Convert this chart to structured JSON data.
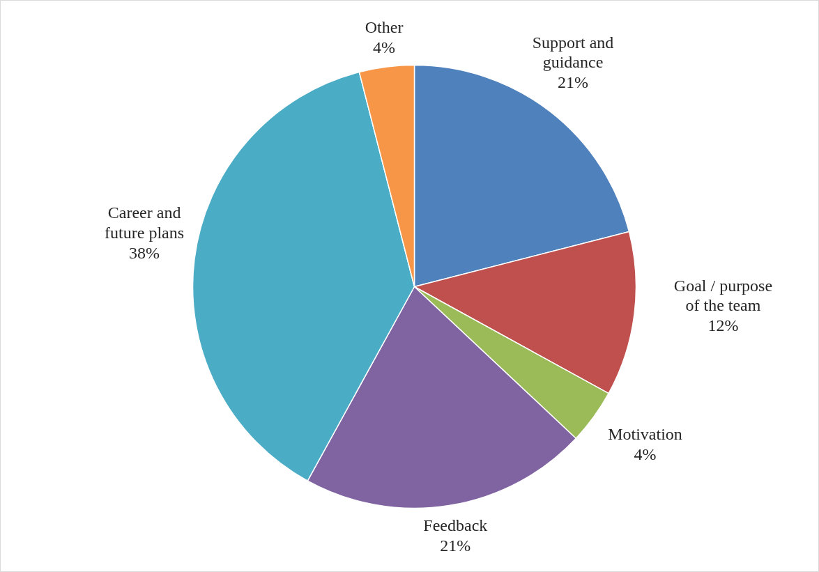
{
  "chart_data": {
    "type": "pie",
    "categories": [
      "Support and guidance",
      "Goal / purpose of the team",
      "Motivation",
      "Feedback",
      "Career and future plans",
      "Other"
    ],
    "values": [
      21,
      12,
      4,
      21,
      38,
      4
    ],
    "value_labels": [
      "21%",
      "12%",
      "4%",
      "21%",
      "38%",
      "4%"
    ],
    "colors": [
      "#4f81bd",
      "#c0504d",
      "#9bbb59",
      "#8064a2",
      "#4bacc6",
      "#f79646"
    ]
  }
}
